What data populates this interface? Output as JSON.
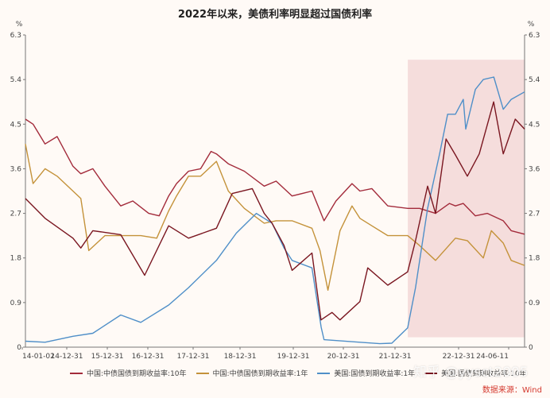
{
  "chart_data": {
    "type": "line",
    "title": "2022年以来，美债利率明显超过国债利率",
    "left_unit": "%",
    "right_unit": "%",
    "ylim": [
      0,
      6.3
    ],
    "yticks": [
      0,
      0.9,
      1.8,
      2.7,
      3.6,
      4.5,
      5.4,
      6.3
    ],
    "ytick_labels": [
      "0",
      "0.9",
      "1.8",
      "2.7",
      "3.6",
      "4.5",
      "5.4",
      "6.3"
    ],
    "x_tick_labels": [
      "14-01-02",
      "14-12-31",
      "15-12-31",
      "16-12-31",
      "17-12-31",
      "18-12-31",
      "19-12-31",
      "20-12-31",
      "21-12-31",
      "22-12-31",
      "24-06-11"
    ],
    "xlim": [
      "2014-01-02",
      "2024-06-11"
    ],
    "highlight_range": [
      "2022-01-01",
      "2024-06-11"
    ],
    "highlight_color": "#f2d6d6",
    "grid": false,
    "series": [
      {
        "name": "中国:中债国债到期收益率:10年",
        "color": "#a32b3b",
        "points": [
          [
            "2014-01-02",
            4.6
          ],
          [
            "2014-03-01",
            4.5
          ],
          [
            "2014-06-01",
            4.1
          ],
          [
            "2014-09-01",
            4.25
          ],
          [
            "2014-12-31",
            3.65
          ],
          [
            "2015-03-01",
            3.5
          ],
          [
            "2015-06-01",
            3.6
          ],
          [
            "2015-09-01",
            3.25
          ],
          [
            "2015-12-31",
            2.85
          ],
          [
            "2016-04-01",
            2.95
          ],
          [
            "2016-08-01",
            2.7
          ],
          [
            "2016-10-20",
            2.65
          ],
          [
            "2016-12-31",
            3.05
          ],
          [
            "2017-03-01",
            3.3
          ],
          [
            "2017-06-01",
            3.55
          ],
          [
            "2017-09-01",
            3.6
          ],
          [
            "2017-11-20",
            3.95
          ],
          [
            "2017-12-31",
            3.9
          ],
          [
            "2018-04-01",
            3.7
          ],
          [
            "2018-08-01",
            3.55
          ],
          [
            "2018-12-31",
            3.25
          ],
          [
            "2019-04-01",
            3.35
          ],
          [
            "2019-08-01",
            3.05
          ],
          [
            "2019-12-31",
            3.15
          ],
          [
            "2020-04-01",
            2.55
          ],
          [
            "2020-07-01",
            2.95
          ],
          [
            "2020-11-01",
            3.3
          ],
          [
            "2020-12-31",
            3.15
          ],
          [
            "2021-04-01",
            3.2
          ],
          [
            "2021-08-01",
            2.85
          ],
          [
            "2021-12-31",
            2.8
          ],
          [
            "2022-04-01",
            2.8
          ],
          [
            "2022-08-01",
            2.7
          ],
          [
            "2022-11-15",
            2.9
          ],
          [
            "2022-12-31",
            2.85
          ],
          [
            "2023-03-01",
            2.9
          ],
          [
            "2023-06-01",
            2.65
          ],
          [
            "2023-09-01",
            2.7
          ],
          [
            "2023-12-31",
            2.55
          ],
          [
            "2024-03-01",
            2.35
          ],
          [
            "2024-06-11",
            2.28
          ]
        ]
      },
      {
        "name": "中国:中债国债到期收益率:1年",
        "color": "#c4923a",
        "points": [
          [
            "2014-01-02",
            4.1
          ],
          [
            "2014-03-01",
            3.3
          ],
          [
            "2014-06-01",
            3.6
          ],
          [
            "2014-09-01",
            3.45
          ],
          [
            "2014-12-31",
            3.15
          ],
          [
            "2015-03-01",
            3.0
          ],
          [
            "2015-05-01",
            1.95
          ],
          [
            "2015-09-01",
            2.25
          ],
          [
            "2015-12-31",
            2.25
          ],
          [
            "2016-06-01",
            2.25
          ],
          [
            "2016-10-01",
            2.2
          ],
          [
            "2016-12-31",
            2.75
          ],
          [
            "2017-03-01",
            3.05
          ],
          [
            "2017-06-01",
            3.45
          ],
          [
            "2017-09-01",
            3.45
          ],
          [
            "2017-12-31",
            3.75
          ],
          [
            "2018-04-01",
            3.15
          ],
          [
            "2018-08-01",
            2.8
          ],
          [
            "2018-12-31",
            2.5
          ],
          [
            "2019-04-01",
            2.55
          ],
          [
            "2019-08-01",
            2.55
          ],
          [
            "2019-12-31",
            2.4
          ],
          [
            "2020-03-01",
            1.95
          ],
          [
            "2020-05-01",
            1.15
          ],
          [
            "2020-08-01",
            2.35
          ],
          [
            "2020-11-01",
            2.85
          ],
          [
            "2020-12-31",
            2.6
          ],
          [
            "2021-04-01",
            2.45
          ],
          [
            "2021-08-01",
            2.25
          ],
          [
            "2021-12-31",
            2.25
          ],
          [
            "2022-04-01",
            2.05
          ],
          [
            "2022-08-01",
            1.75
          ],
          [
            "2022-12-31",
            2.2
          ],
          [
            "2023-04-01",
            2.15
          ],
          [
            "2023-08-01",
            1.8
          ],
          [
            "2023-10-01",
            2.35
          ],
          [
            "2023-12-31",
            2.1
          ],
          [
            "2024-03-01",
            1.75
          ],
          [
            "2024-06-11",
            1.65
          ]
        ]
      },
      {
        "name": "美国:国债到期收益率:1年",
        "color": "#4f8fc8",
        "points": [
          [
            "2014-01-02",
            0.12
          ],
          [
            "2014-06-01",
            0.1
          ],
          [
            "2014-12-31",
            0.22
          ],
          [
            "2015-06-01",
            0.28
          ],
          [
            "2015-12-31",
            0.65
          ],
          [
            "2016-06-01",
            0.5
          ],
          [
            "2016-12-31",
            0.85
          ],
          [
            "2017-06-01",
            1.2
          ],
          [
            "2017-12-31",
            1.75
          ],
          [
            "2018-06-01",
            2.3
          ],
          [
            "2018-11-01",
            2.7
          ],
          [
            "2018-12-31",
            2.6
          ],
          [
            "2019-03-01",
            2.5
          ],
          [
            "2019-06-01",
            2.0
          ],
          [
            "2019-08-01",
            1.75
          ],
          [
            "2019-12-31",
            1.6
          ],
          [
            "2020-03-10",
            0.4
          ],
          [
            "2020-04-01",
            0.15
          ],
          [
            "2020-12-31",
            0.1
          ],
          [
            "2021-06-01",
            0.07
          ],
          [
            "2021-09-01",
            0.08
          ],
          [
            "2021-12-31",
            0.39
          ],
          [
            "2022-03-01",
            1.2
          ],
          [
            "2022-06-01",
            2.8
          ],
          [
            "2022-09-01",
            3.9
          ],
          [
            "2022-11-01",
            4.7
          ],
          [
            "2022-12-31",
            4.7
          ],
          [
            "2023-03-01",
            5.0
          ],
          [
            "2023-03-20",
            4.4
          ],
          [
            "2023-06-01",
            5.2
          ],
          [
            "2023-08-01",
            5.4
          ],
          [
            "2023-10-20",
            5.45
          ],
          [
            "2023-12-31",
            4.8
          ],
          [
            "2024-03-01",
            5.0
          ],
          [
            "2024-06-11",
            5.15
          ]
        ]
      },
      {
        "name": "美国:国债到期收益率:10年",
        "color": "#7a1620",
        "points": [
          [
            "2014-01-02",
            3.0
          ],
          [
            "2014-06-01",
            2.6
          ],
          [
            "2014-12-31",
            2.2
          ],
          [
            "2015-03-01",
            2.0
          ],
          [
            "2015-06-01",
            2.35
          ],
          [
            "2015-12-31",
            2.27
          ],
          [
            "2016-07-01",
            1.45
          ],
          [
            "2016-12-31",
            2.45
          ],
          [
            "2017-06-01",
            2.2
          ],
          [
            "2017-12-31",
            2.4
          ],
          [
            "2018-05-01",
            3.1
          ],
          [
            "2018-10-01",
            3.2
          ],
          [
            "2018-12-31",
            2.7
          ],
          [
            "2019-03-01",
            2.5
          ],
          [
            "2019-06-01",
            2.05
          ],
          [
            "2019-08-01",
            1.55
          ],
          [
            "2019-12-31",
            1.9
          ],
          [
            "2020-03-09",
            0.55
          ],
          [
            "2020-06-01",
            0.7
          ],
          [
            "2020-08-01",
            0.55
          ],
          [
            "2020-12-31",
            0.92
          ],
          [
            "2021-03-01",
            1.6
          ],
          [
            "2021-08-01",
            1.25
          ],
          [
            "2021-12-31",
            1.52
          ],
          [
            "2022-03-01",
            2.15
          ],
          [
            "2022-06-01",
            3.25
          ],
          [
            "2022-08-01",
            2.7
          ],
          [
            "2022-10-20",
            4.2
          ],
          [
            "2022-12-31",
            3.88
          ],
          [
            "2023-04-01",
            3.45
          ],
          [
            "2023-07-01",
            3.9
          ],
          [
            "2023-10-19",
            4.95
          ],
          [
            "2023-12-31",
            3.9
          ],
          [
            "2024-04-01",
            4.6
          ],
          [
            "2024-06-11",
            4.4
          ]
        ]
      }
    ]
  },
  "source_note": "数据来源：Wind",
  "watermark": "知乎 @yysct2005"
}
